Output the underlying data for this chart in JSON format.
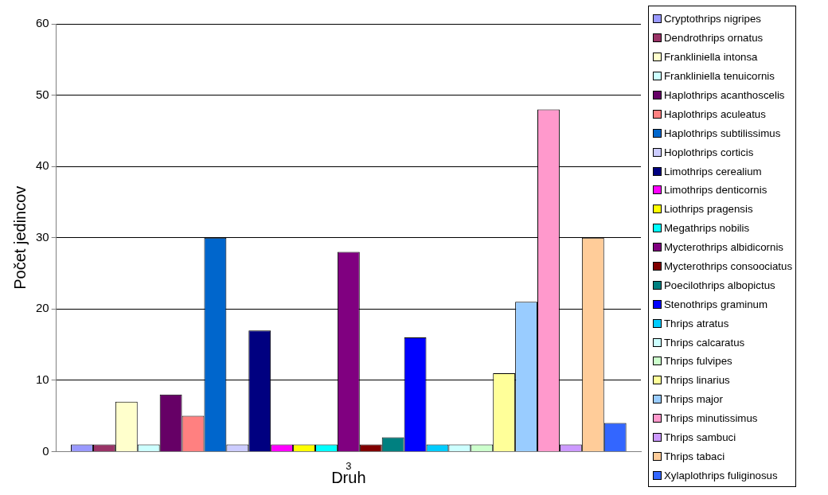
{
  "chart_data": {
    "type": "bar",
    "xlabel": "Druh",
    "ylabel": "Počet jedincov",
    "categories": [
      "3"
    ],
    "ylim": [
      0,
      60
    ],
    "yticks": [
      0,
      10,
      20,
      30,
      40,
      50,
      60
    ],
    "grid": "y",
    "legend": "right",
    "series": [
      {
        "name": "Cryptothrips nigripes",
        "color": "#9999ff",
        "values": [
          1
        ]
      },
      {
        "name": "Dendrothrips ornatus",
        "color": "#993366",
        "values": [
          1
        ]
      },
      {
        "name": "Frankliniella intonsa",
        "color": "#ffffcc",
        "values": [
          7
        ]
      },
      {
        "name": "Frankliniella tenuicornis",
        "color": "#ccffff",
        "values": [
          1
        ]
      },
      {
        "name": "Haplothrips acanthoscelis",
        "color": "#660066",
        "values": [
          8
        ]
      },
      {
        "name": "Haplothrips aculeatus",
        "color": "#ff8080",
        "values": [
          5
        ]
      },
      {
        "name": "Haplothrips subtilissimus",
        "color": "#0066cc",
        "values": [
          30
        ]
      },
      {
        "name": "Hoplothrips corticis",
        "color": "#ccccff",
        "values": [
          1
        ]
      },
      {
        "name": "Limothrips cerealium",
        "color": "#000080",
        "values": [
          17
        ]
      },
      {
        "name": "Limothrips denticornis",
        "color": "#ff00ff",
        "values": [
          1
        ]
      },
      {
        "name": "Liothrips pragensis",
        "color": "#ffff00",
        "values": [
          1
        ]
      },
      {
        "name": "Megathrips nobilis",
        "color": "#00ffff",
        "values": [
          1
        ]
      },
      {
        "name": "Mycterothrips albidicornis",
        "color": "#800080",
        "values": [
          28
        ]
      },
      {
        "name": "Mycterothrips consoociatus",
        "color": "#800000",
        "values": [
          1
        ]
      },
      {
        "name": "Poecilothrips albopictus",
        "color": "#008080",
        "values": [
          2
        ]
      },
      {
        "name": "Stenothrips graminum",
        "color": "#0000ff",
        "values": [
          16
        ]
      },
      {
        "name": "Thrips atratus",
        "color": "#00ccff",
        "values": [
          1
        ]
      },
      {
        "name": "Thrips calcaratus",
        "color": "#ccffff",
        "values": [
          1
        ]
      },
      {
        "name": "Thrips fulvipes",
        "color": "#ccffcc",
        "values": [
          1
        ]
      },
      {
        "name": "Thrips linarius",
        "color": "#ffff99",
        "values": [
          11
        ]
      },
      {
        "name": "Thrips major",
        "color": "#99ccff",
        "values": [
          21
        ]
      },
      {
        "name": "Thrips minutissimus",
        "color": "#ff99cc",
        "values": [
          48
        ]
      },
      {
        "name": "Thrips sambuci",
        "color": "#cc99ff",
        "values": [
          1
        ]
      },
      {
        "name": "Thrips tabaci",
        "color": "#ffcc99",
        "values": [
          30
        ]
      },
      {
        "name": "Xylaplothrips fuliginosus",
        "color": "#3366ff",
        "values": [
          4
        ]
      }
    ]
  }
}
